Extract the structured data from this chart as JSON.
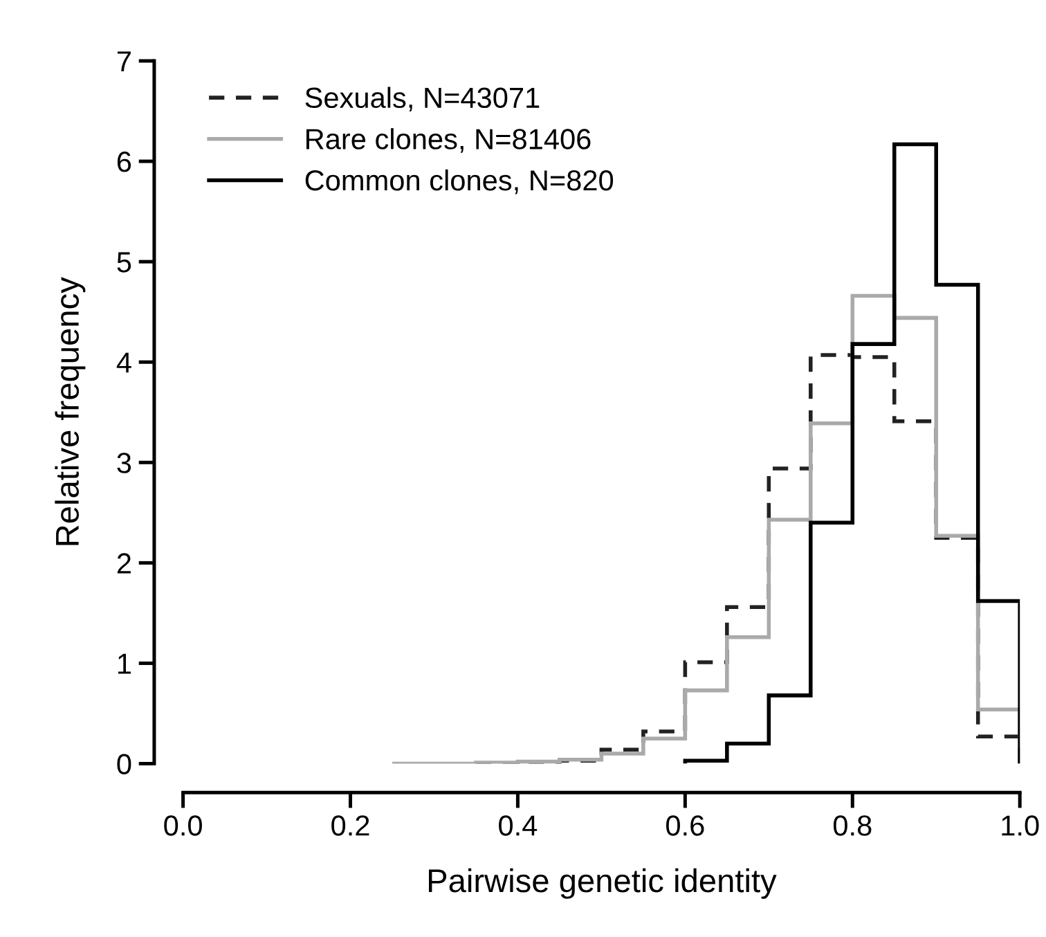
{
  "chart_data": {
    "type": "histogram",
    "xlabel": "Pairwise genetic identity",
    "ylabel": "Relative frequency",
    "xlim": [
      0.0,
      1.0
    ],
    "xticks": [
      {
        "value": 0.0,
        "label": "0.0"
      },
      {
        "value": 0.2,
        "label": "0.2"
      },
      {
        "value": 0.4,
        "label": "0.4"
      },
      {
        "value": 0.6,
        "label": "0.6"
      },
      {
        "value": 0.8,
        "label": "0.8"
      },
      {
        "value": 1.0,
        "label": "1.0"
      }
    ],
    "ylim": [
      0,
      7
    ],
    "yticks": [
      0,
      1,
      2,
      3,
      4,
      5,
      6,
      7
    ],
    "grid": false,
    "legend": "top left",
    "bins": [
      0.25,
      0.3,
      0.35,
      0.4,
      0.45,
      0.5,
      0.55,
      0.6,
      0.65,
      0.7,
      0.75,
      0.8,
      0.85,
      0.9,
      0.95,
      1.0
    ],
    "series": [
      {
        "name": "Sexuals, N=43071",
        "color": "#222222",
        "line_style": "dashed",
        "bins": [
          0.35,
          0.4,
          0.45,
          0.5,
          0.55,
          0.6,
          0.65,
          0.7,
          0.75,
          0.8,
          0.85,
          0.9,
          0.95,
          1.0
        ],
        "values": [
          0.0,
          0.01,
          0.03,
          0.14,
          0.32,
          1.01,
          1.56,
          2.94,
          4.07,
          4.05,
          3.41,
          2.25,
          0.27
        ]
      },
      {
        "name": "Rare clones, N=81406",
        "color": "#aaaaaa",
        "line_style": "solid",
        "values": [
          0.0,
          0.0,
          0.01,
          0.02,
          0.04,
          0.1,
          0.25,
          0.73,
          1.26,
          2.43,
          3.39,
          4.66,
          4.44,
          2.27,
          0.54
        ]
      },
      {
        "name": "Common clones, N=820",
        "color": "#000000",
        "line_style": "solid",
        "bins": [
          0.6,
          0.65,
          0.7,
          0.75,
          0.8,
          0.85,
          0.9,
          0.95,
          1.0
        ],
        "values": [
          0.03,
          0.2,
          0.68,
          2.4,
          4.18,
          6.17,
          4.77,
          1.62
        ]
      }
    ]
  }
}
